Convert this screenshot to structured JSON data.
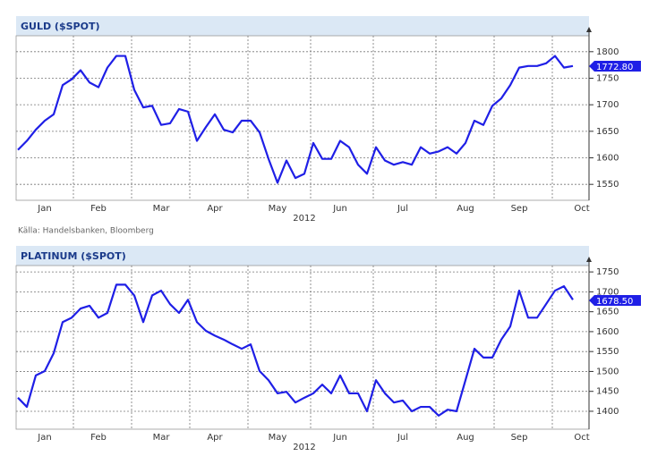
{
  "chart_data": [
    {
      "type": "line",
      "title": "GULD ($SPOT)",
      "xlabel": "2012",
      "source": "Källa: Handelsbanken, Bloomberg",
      "categories": [
        null,
        null,
        null,
        "Jan",
        null,
        null,
        null,
        null,
        null,
        "Feb",
        null,
        null,
        null,
        null,
        null,
        null,
        "Mar",
        null,
        null,
        null,
        null,
        null,
        "Apr",
        null,
        null,
        null,
        null,
        null,
        null,
        "May",
        null,
        null,
        null,
        null,
        null,
        null,
        "Jun",
        null,
        null,
        null,
        null,
        null,
        null,
        "Jul",
        null,
        null,
        null,
        null,
        null,
        null,
        "Aug",
        null,
        null,
        null,
        null,
        null,
        "Sep",
        null,
        null,
        null,
        null,
        null,
        null,
        "Oct"
      ],
      "series": [
        {
          "name": "GULD",
          "color": "#1f1fe6",
          "values": [
            1615,
            1632,
            1653,
            1670,
            1682,
            1737,
            1748,
            1765,
            1742,
            1733,
            1770,
            1792,
            1792,
            1728,
            1695,
            1698,
            1662,
            1665,
            1692,
            1687,
            1632,
            1658,
            1682,
            1653,
            1648,
            1670,
            1670,
            1648,
            1598,
            1553,
            1595,
            1562,
            1570,
            1628,
            1598,
            1598,
            1632,
            1620,
            1587,
            1570,
            1620,
            1595,
            1587,
            1592,
            1587,
            1620,
            1608,
            1612,
            1620,
            1608,
            1628,
            1670,
            1662,
            1698,
            1712,
            1737,
            1770,
            1773,
            1773,
            1778,
            1792,
            1770,
            1773,
            null
          ]
        }
      ],
      "current": {
        "value": 1772.8,
        "label": "1772.80"
      },
      "ylim": [
        1520,
        1830
      ],
      "yticks": [
        1550,
        1600,
        1650,
        1700,
        1750,
        1800
      ],
      "grid": true
    },
    {
      "type": "line",
      "title": "PLATINUM ($SPOT)",
      "xlabel": "2012",
      "categories": [
        null,
        null,
        null,
        "Jan",
        null,
        null,
        null,
        null,
        null,
        "Feb",
        null,
        null,
        null,
        null,
        null,
        null,
        "Mar",
        null,
        null,
        null,
        null,
        null,
        "Apr",
        null,
        null,
        null,
        null,
        null,
        null,
        "May",
        null,
        null,
        null,
        null,
        null,
        null,
        "Jun",
        null,
        null,
        null,
        null,
        null,
        null,
        "Jul",
        null,
        null,
        null,
        null,
        null,
        null,
        "Aug",
        null,
        null,
        null,
        null,
        null,
        "Sep",
        null,
        null,
        null,
        null,
        null,
        null,
        "Oct"
      ],
      "series": [
        {
          "name": "PLATINUM",
          "color": "#1f1fe6",
          "values": [
            1434,
            1411,
            1490,
            1501,
            1546,
            1624,
            1635,
            1658,
            1665,
            1635,
            1647,
            1718,
            1718,
            1691,
            1624,
            1691,
            1703,
            1669,
            1647,
            1680,
            1624,
            1602,
            1590,
            1580,
            1568,
            1557,
            1568,
            1501,
            1478,
            1445,
            1449,
            1422,
            1434,
            1445,
            1467,
            1445,
            1490,
            1445,
            1445,
            1400,
            1478,
            1445,
            1422,
            1427,
            1400,
            1411,
            1411,
            1389,
            1404,
            1400,
            1478,
            1557,
            1535,
            1535,
            1580,
            1613,
            1703,
            1635,
            1635,
            1669,
            1703,
            1714,
            1680,
            null
          ]
        }
      ],
      "current": {
        "value": 1678.5,
        "label": "1678.50"
      },
      "ylim": [
        1355,
        1766
      ],
      "yticks": [
        1400,
        1450,
        1500,
        1550,
        1600,
        1650,
        1700,
        1750
      ],
      "grid": true
    }
  ]
}
